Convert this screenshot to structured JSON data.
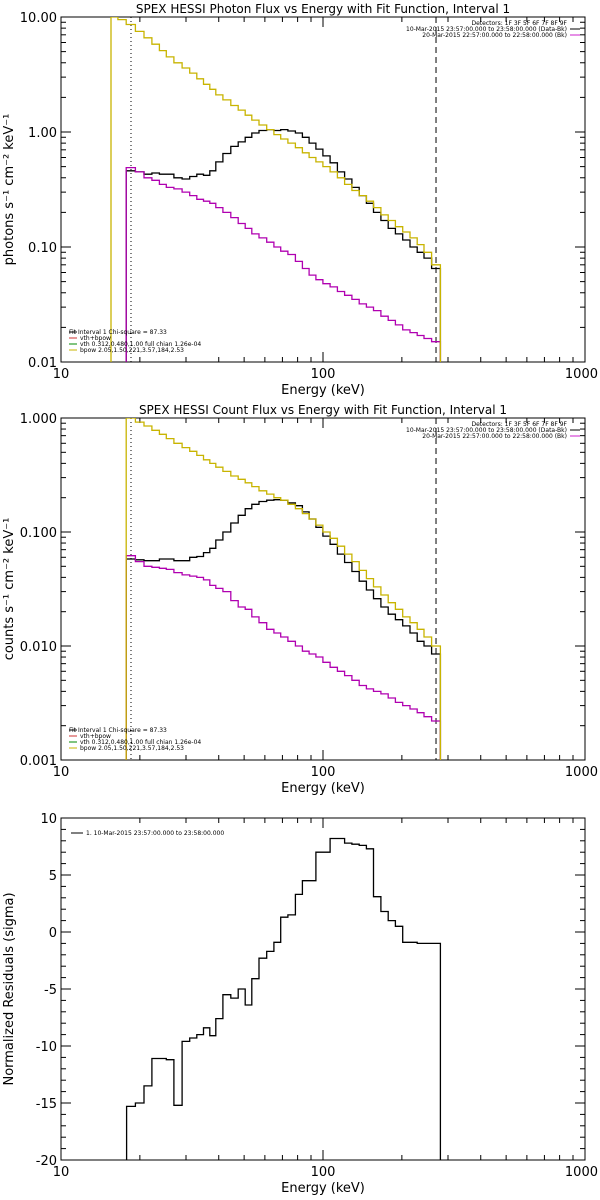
{
  "colors": {
    "data": "#000000",
    "model_total": "#000000",
    "vth": "#b000b0",
    "vth_line": "#cc3333",
    "bpow": "#c8b400",
    "fitfunc": "#008800",
    "background": "#cc22cc",
    "bgline": "#cc3333"
  },
  "chart_data": [
    {
      "type": "line",
      "title": "SPEX HESSI Photon Flux vs Energy with Fit Function, Interval 1",
      "xlabel": "Energy (keV)",
      "ylabel": "photons s⁻¹ cm⁻² keV⁻¹",
      "xscale": "log",
      "yscale": "log",
      "xlim": [
        10,
        1000
      ],
      "ylim": [
        0.01,
        10
      ],
      "xticks": [
        10,
        100,
        1000
      ],
      "xtick_labels": [
        "10",
        "100",
        "1000"
      ],
      "yticks": [
        0.01,
        0.1,
        1,
        10
      ],
      "ytick_labels": [
        "0.01",
        "0.10",
        "1.00",
        "10.00"
      ],
      "vlines": [
        {
          "x": 18.5,
          "style": "dotted"
        },
        {
          "x": 270,
          "style": "dashed"
        }
      ],
      "legend_topright": [
        {
          "text": "Detectors: 1F 3F 5F 6F 7F 8F 9F",
          "color": "data"
        },
        {
          "text": "10-Mar-2015 23:57:00.000 to 23:58:00.000 (Data-Bk)",
          "color": "data"
        },
        {
          "text": "20-Mar-2015 22:57:00.000 to 22:58:00.000 (Bk)",
          "color": "background"
        }
      ],
      "legend_bottomleft": [
        {
          "text": "Fit Interval 1    Chi-square = 87.33",
          "color": "data"
        },
        {
          "text": "vth+bpow",
          "color": "vth_line"
        },
        {
          "text": "vth 0.312,0.480,1.00  full chian 1.26e-04",
          "color": "fitfunc"
        },
        {
          "text": "bpow 2.05,1.50,221,3.57,184,2.53",
          "color": "bpow"
        }
      ],
      "x": [
        16,
        17,
        18.5,
        20,
        21.5,
        23,
        24.5,
        26,
        28,
        30,
        32,
        34,
        36,
        38,
        40,
        43,
        46,
        49,
        52,
        55,
        59,
        63,
        67,
        71,
        76,
        81,
        86,
        91,
        97,
        103,
        110,
        117,
        125,
        133,
        142,
        151,
        161,
        172,
        183,
        195,
        208,
        222,
        236,
        250,
        270
      ],
      "series": [
        {
          "name": "Data",
          "color": "data",
          "values": [
            null,
            null,
            0.46,
            0.45,
            0.43,
            0.44,
            0.43,
            0.43,
            0.4,
            0.39,
            0.41,
            0.43,
            0.42,
            0.46,
            0.55,
            0.65,
            0.75,
            0.82,
            0.9,
            0.98,
            1.03,
            1.05,
            1.03,
            1.05,
            1.02,
            0.98,
            0.9,
            0.8,
            0.71,
            0.62,
            0.54,
            0.45,
            0.39,
            0.33,
            0.28,
            0.24,
            0.2,
            0.17,
            0.145,
            0.13,
            0.115,
            0.1,
            0.09,
            0.08,
            0.065
          ]
        },
        {
          "name": "vth",
          "color": "vth",
          "values": [
            null,
            null,
            0.49,
            0.45,
            0.4,
            0.38,
            0.35,
            0.33,
            0.32,
            0.3,
            0.28,
            0.26,
            0.25,
            0.24,
            0.22,
            0.2,
            0.18,
            0.16,
            0.145,
            0.13,
            0.12,
            0.11,
            0.1,
            0.092,
            0.086,
            0.075,
            0.065,
            0.057,
            0.052,
            0.048,
            0.045,
            0.041,
            0.038,
            0.035,
            0.032,
            0.03,
            0.028,
            0.025,
            0.023,
            0.021,
            0.019,
            0.018,
            0.017,
            0.016,
            0.015
          ]
        },
        {
          "name": "bpow",
          "color": "bpow",
          "values": [
            10.0,
            9.5,
            8.6,
            7.5,
            6.6,
            5.8,
            5.1,
            4.5,
            4.0,
            3.6,
            3.25,
            2.9,
            2.6,
            2.35,
            2.1,
            1.9,
            1.7,
            1.55,
            1.4,
            1.27,
            1.15,
            1.05,
            0.95,
            0.87,
            0.8,
            0.73,
            0.66,
            0.6,
            0.55,
            0.5,
            0.45,
            0.4,
            0.35,
            0.31,
            0.28,
            0.25,
            0.22,
            0.19,
            0.17,
            0.15,
            0.135,
            0.12,
            0.105,
            0.09,
            0.07
          ]
        }
      ]
    },
    {
      "type": "line",
      "title": "SPEX HESSI Count Flux vs Energy with Fit Function, Interval 1",
      "xlabel": "Energy (keV)",
      "ylabel": "counts s⁻¹ cm⁻² keV⁻¹",
      "xscale": "log",
      "yscale": "log",
      "xlim": [
        10,
        1000
      ],
      "ylim": [
        0.001,
        1
      ],
      "xticks": [
        10,
        100,
        1000
      ],
      "xtick_labels": [
        "10",
        "100",
        "1000"
      ],
      "yticks": [
        0.001,
        0.01,
        0.1,
        1
      ],
      "ytick_labels": [
        "0.001",
        "0.010",
        "0.100",
        "1.000"
      ],
      "vlines": [
        {
          "x": 18.5,
          "style": "dotted"
        },
        {
          "x": 270,
          "style": "dashed"
        }
      ],
      "legend_topright": [
        {
          "text": "Detectors: 1F 3F 5F 6F 7F 8F 9F",
          "color": "data"
        },
        {
          "text": "10-Mar-2015 23:57:00.000 to 23:58:00.000 (Data-Bk)",
          "color": "data"
        },
        {
          "text": "20-Mar-2015 22:57:00.000 to 22:58:00.000 (Bk)",
          "color": "background"
        }
      ],
      "legend_bottomleft": [
        {
          "text": "Fit Interval 1    Chi-square = 87.33",
          "color": "data"
        },
        {
          "text": "vth+bpow",
          "color": "vth_line"
        },
        {
          "text": "vth 0.312,0.480,1.00  full chian 1.26e-04",
          "color": "fitfunc"
        },
        {
          "text": "bpow 2.05,1.50,221,3.57,184,2.53",
          "color": "bpow"
        }
      ],
      "x": [
        16,
        17,
        18.5,
        20,
        21.5,
        23,
        24.5,
        26,
        28,
        30,
        32,
        34,
        36,
        38,
        40,
        43,
        46,
        49,
        52,
        55,
        59,
        63,
        67,
        71,
        76,
        81,
        86,
        91,
        97,
        103,
        110,
        117,
        125,
        133,
        142,
        151,
        161,
        172,
        183,
        195,
        208,
        222,
        236,
        250,
        270
      ],
      "series": [
        {
          "name": "Data",
          "color": "data",
          "values": [
            null,
            null,
            0.058,
            0.057,
            0.056,
            0.056,
            0.058,
            0.058,
            0.056,
            0.056,
            0.06,
            0.061,
            0.066,
            0.072,
            0.085,
            0.1,
            0.12,
            0.14,
            0.16,
            0.175,
            0.185,
            0.19,
            0.192,
            0.19,
            0.18,
            0.17,
            0.15,
            0.13,
            0.11,
            0.092,
            0.078,
            0.064,
            0.054,
            0.045,
            0.037,
            0.031,
            0.026,
            0.022,
            0.019,
            0.017,
            0.015,
            0.013,
            0.011,
            0.01,
            0.0085
          ]
        },
        {
          "name": "vth",
          "color": "vth",
          "values": [
            null,
            null,
            0.062,
            0.055,
            0.05,
            0.049,
            0.048,
            0.047,
            0.044,
            0.042,
            0.041,
            0.04,
            0.038,
            0.034,
            0.032,
            0.03,
            0.025,
            0.022,
            0.021,
            0.018,
            0.016,
            0.014,
            0.013,
            0.012,
            0.011,
            0.01,
            0.009,
            0.0085,
            0.008,
            0.0072,
            0.0065,
            0.006,
            0.0055,
            0.005,
            0.0045,
            0.0042,
            0.004,
            0.0038,
            0.0035,
            0.0032,
            0.003,
            0.0028,
            0.0026,
            0.0024,
            0.0022
          ]
        },
        {
          "name": "bpow",
          "color": "bpow",
          "values": [
            null,
            null,
            1.0,
            0.92,
            0.85,
            0.78,
            0.72,
            0.66,
            0.6,
            0.55,
            0.51,
            0.47,
            0.43,
            0.4,
            0.37,
            0.34,
            0.31,
            0.29,
            0.27,
            0.25,
            0.23,
            0.215,
            0.2,
            0.19,
            0.175,
            0.16,
            0.145,
            0.13,
            0.115,
            0.1,
            0.088,
            0.075,
            0.064,
            0.055,
            0.046,
            0.039,
            0.033,
            0.028,
            0.024,
            0.021,
            0.018,
            0.016,
            0.014,
            0.012,
            0.01
          ]
        }
      ]
    },
    {
      "type": "line",
      "title": "",
      "xlabel": "Energy (keV)",
      "ylabel": "Normalized Residuals (sigma)",
      "xscale": "log",
      "yscale": "linear",
      "xlim": [
        10,
        1000
      ],
      "ylim": [
        -20,
        10
      ],
      "xticks": [
        10,
        100,
        1000
      ],
      "xtick_labels": [
        "10",
        "100",
        "1000"
      ],
      "yticks": [
        -20,
        -15,
        -10,
        -5,
        0,
        5,
        10
      ],
      "ytick_labels": [
        "-20",
        "-15",
        "-10",
        "-5",
        "0",
        "5",
        "10"
      ],
      "legend_topleft": [
        {
          "text": "1. 10-Mar-2015 23:57:00.000 to 23:58:00.000",
          "color": "data"
        }
      ],
      "x": [
        18.5,
        20,
        21.5,
        23,
        24.5,
        26,
        28,
        30,
        32,
        34,
        36,
        38,
        40,
        43,
        46,
        49,
        52,
        55,
        59,
        63,
        67,
        71,
        76,
        81,
        86,
        91,
        97,
        103,
        110,
        117,
        125,
        133,
        142,
        151,
        161,
        172,
        183,
        195,
        208,
        222,
        236,
        250,
        270
      ],
      "series": [
        {
          "name": "Residuals",
          "color": "data",
          "values": [
            -15.3,
            -15.0,
            -13.5,
            -11.1,
            -11.1,
            -11.2,
            -15.2,
            -9.6,
            -9.3,
            -9.0,
            -8.4,
            -9.1,
            -7.6,
            -5.5,
            -5.8,
            -5.0,
            -6.4,
            -4.1,
            -2.3,
            -1.7,
            -0.9,
            1.3,
            1.5,
            3.3,
            4.5,
            4.5,
            7.0,
            7.0,
            8.2,
            8.2,
            7.8,
            7.7,
            7.6,
            7.3,
            3.1,
            1.8,
            1.0,
            0.5,
            -0.9,
            -0.9,
            -1.0,
            -1.0,
            -1.0
          ]
        }
      ]
    }
  ]
}
